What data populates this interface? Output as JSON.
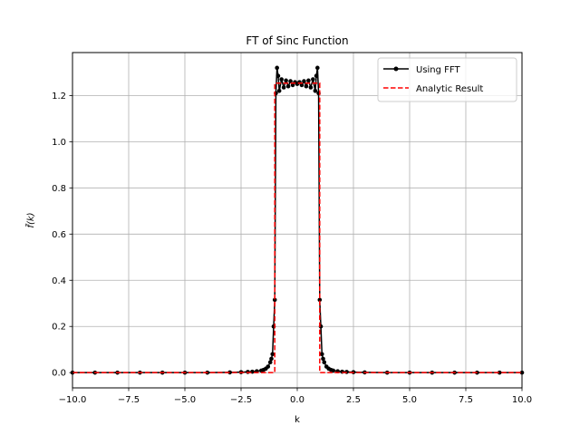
{
  "chart_data": {
    "type": "line",
    "title": "FT of Sinc Function",
    "xlabel": "k",
    "ylabel": "f̃(k)",
    "xlim": [
      -10,
      10
    ],
    "ylim": [
      -0.066,
      1.386
    ],
    "xticks": [
      -10,
      -7.5,
      -5,
      -2.5,
      0,
      2.5,
      5,
      7.5,
      10
    ],
    "xtick_labels": [
      "−10.0",
      "−7.5",
      "−5.0",
      "−2.5",
      "0.0",
      "2.5",
      "5.0",
      "7.5",
      "10.0"
    ],
    "yticks": [
      0,
      0.2,
      0.4,
      0.6,
      0.8,
      1.0,
      1.2
    ],
    "ytick_labels": [
      "0.0",
      "0.2",
      "0.4",
      "0.6",
      "0.8",
      "1.0",
      "1.2"
    ],
    "grid": true,
    "legend_position": "top-right",
    "series": [
      {
        "name": "Using FFT",
        "color": "#000000",
        "style": "solid-with-markers",
        "x": [
          -10.0,
          -9.0,
          -8.0,
          -7.0,
          -6.0,
          -5.0,
          -4.0,
          -3.0,
          -2.5,
          -2.2,
          -2.0,
          -1.8,
          -1.6,
          -1.5,
          -1.4,
          -1.3,
          -1.2,
          -1.15,
          -1.1,
          -1.05,
          -1.0,
          -0.95,
          -0.9,
          -0.85,
          -0.8,
          -0.7,
          -0.6,
          -0.5,
          -0.4,
          -0.3,
          -0.2,
          -0.1,
          0.0,
          0.1,
          0.2,
          0.3,
          0.4,
          0.5,
          0.6,
          0.7,
          0.8,
          0.85,
          0.9,
          0.95,
          1.0,
          1.05,
          1.1,
          1.15,
          1.2,
          1.3,
          1.4,
          1.5,
          1.6,
          1.8,
          2.0,
          2.2,
          2.5,
          3.0,
          4.0,
          5.0,
          6.0,
          7.0,
          8.0,
          9.0,
          10.0
        ],
        "y": [
          0.0,
          0.0,
          0.0,
          0.0,
          0.0,
          0.0,
          0.0,
          0.001,
          0.002,
          0.003,
          0.004,
          0.006,
          0.009,
          0.012,
          0.017,
          0.026,
          0.045,
          0.06,
          0.08,
          0.2,
          0.315,
          1.21,
          1.32,
          1.285,
          1.22,
          1.27,
          1.235,
          1.265,
          1.24,
          1.262,
          1.245,
          1.258,
          1.25,
          1.258,
          1.245,
          1.262,
          1.24,
          1.265,
          1.235,
          1.27,
          1.22,
          1.285,
          1.32,
          1.21,
          0.315,
          0.2,
          0.08,
          0.06,
          0.045,
          0.026,
          0.017,
          0.012,
          0.009,
          0.006,
          0.004,
          0.003,
          0.002,
          0.001,
          0.0,
          0.0,
          0.0,
          0.0,
          0.0,
          0.0,
          0.0
        ]
      },
      {
        "name": "Analytic Result",
        "color": "#ff0000",
        "style": "dashed",
        "x": [
          -10.0,
          -1.0,
          -1.0,
          1.0,
          1.0,
          10.0
        ],
        "y": [
          0.0,
          0.0,
          1.2533,
          1.2533,
          0.0,
          0.0
        ]
      }
    ]
  }
}
